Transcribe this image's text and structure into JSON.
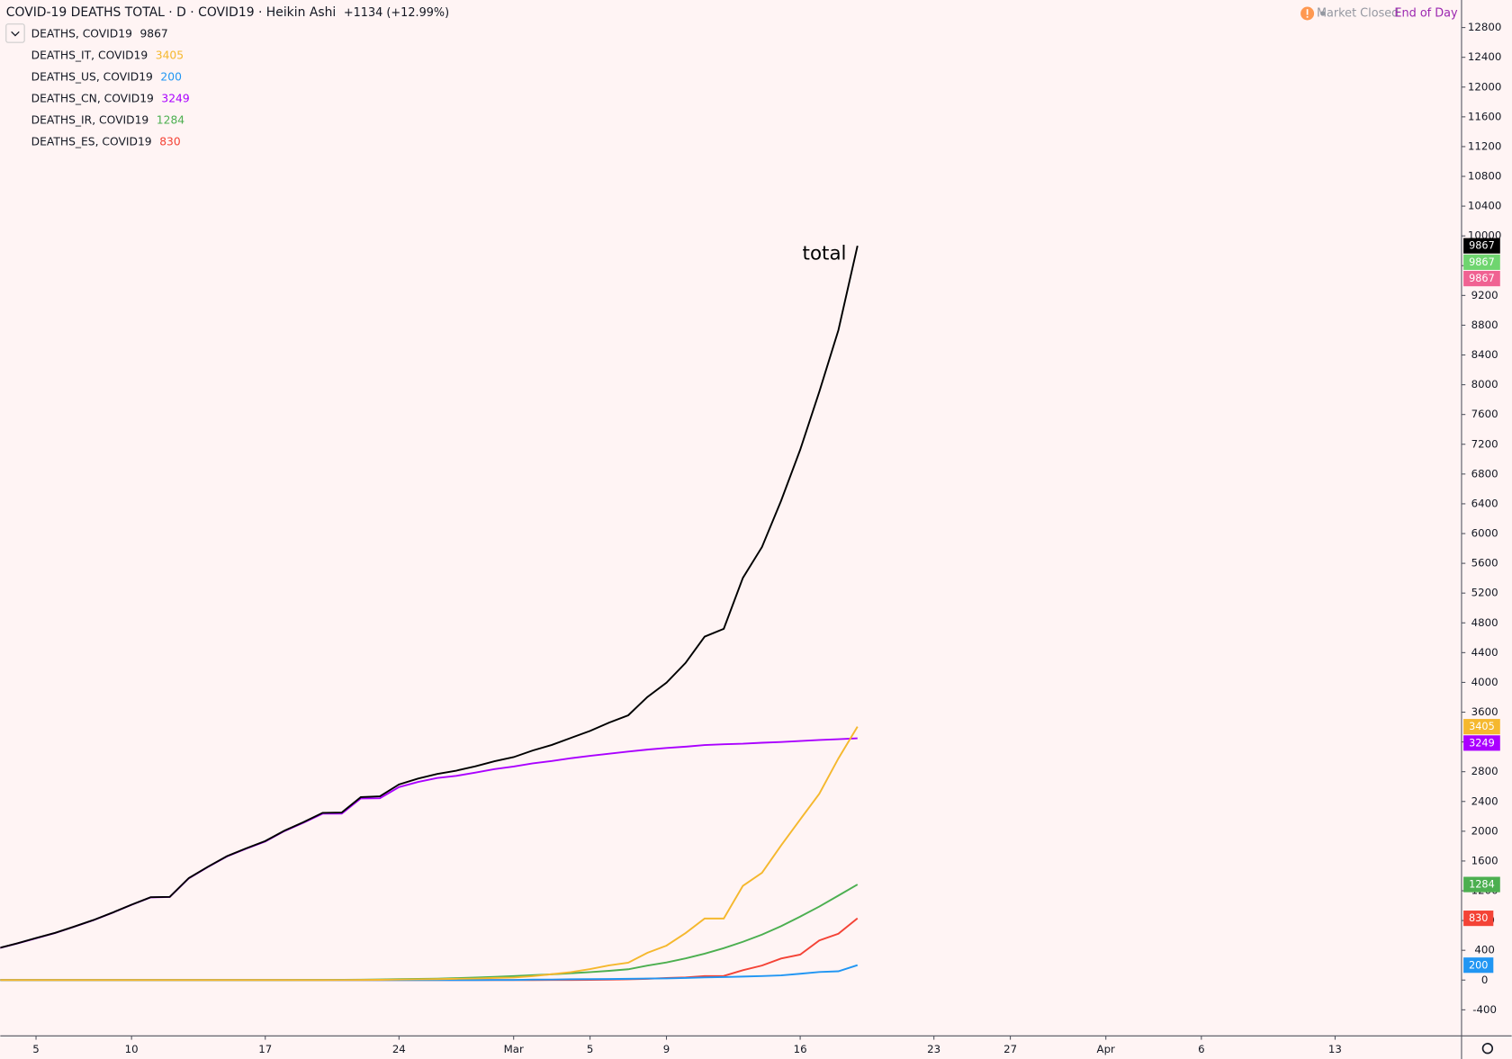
{
  "chart_data": {
    "type": "line",
    "title": "COVID-19 DEATHS TOTAL · D · COVID19 · Heikin Ashi",
    "change": "+1134 (+12.99%)",
    "status": "Market Closed",
    "session": "End of Day",
    "annotation": "total",
    "categories": [
      null,
      null,
      "5",
      null,
      null,
      null,
      null,
      "10",
      null,
      null,
      null,
      null,
      null,
      null,
      "17",
      null,
      null,
      null,
      null,
      null,
      null,
      "24",
      null,
      null,
      null,
      null,
      null,
      "Mar",
      null,
      null,
      null,
      "5",
      null,
      null,
      null,
      "9",
      null,
      null,
      null,
      null,
      null,
      null,
      "16",
      null,
      null,
      null,
      null,
      null,
      null,
      "23",
      null,
      null,
      null,
      "27",
      null,
      null,
      null,
      null,
      "Apr",
      null,
      null,
      null,
      null,
      "6",
      null,
      null,
      null,
      null,
      null,
      null,
      "13",
      null,
      null,
      null,
      null,
      null,
      null
    ],
    "series": [
      {
        "name": "DEATHS, COVID19",
        "color": "#000000",
        "values": [
          426,
          492,
          564,
          634,
          719,
          806,
          906,
          1013,
          1113,
          1118,
          1371,
          1523,
          1666,
          1770,
          1868,
          2007,
          2122,
          2247,
          2251,
          2458,
          2469,
          2629,
          2708,
          2770,
          2814,
          2872,
          2941,
          2996,
          3085,
          3160,
          3254,
          3348,
          3460,
          3558,
          3803,
          3996,
          4262,
          4615,
          4720,
          5404,
          5819,
          6440,
          7126,
          7905,
          8733,
          9867,
          null,
          null,
          null,
          null,
          null,
          null,
          null,
          null,
          null,
          null,
          null,
          null,
          null,
          null,
          null,
          null,
          null,
          null,
          null,
          null,
          null,
          null,
          null,
          null,
          null,
          null,
          null,
          null,
          null,
          null,
          null
        ]
      },
      {
        "name": "DEATHS_IT, COVID19",
        "color": "#f5b82e",
        "values": [
          0,
          0,
          0,
          0,
          0,
          0,
          0,
          0,
          0,
          0,
          0,
          0,
          0,
          0,
          0,
          0,
          0,
          0,
          1,
          2,
          3,
          7,
          10,
          12,
          17,
          21,
          29,
          34,
          52,
          79,
          107,
          148,
          197,
          233,
          366,
          463,
          631,
          827,
          827,
          1266,
          1441,
          1809,
          2158,
          2503,
          2978,
          3405,
          null,
          null,
          null,
          null,
          null,
          null,
          null,
          null,
          null,
          null,
          null,
          null,
          null,
          null,
          null,
          null,
          null,
          null,
          null,
          null,
          null,
          null,
          null,
          null,
          null,
          null,
          null,
          null,
          null,
          null,
          null
        ]
      },
      {
        "name": "DEATHS_US, COVID19",
        "color": "#2196f3",
        "values": [
          0,
          0,
          0,
          0,
          0,
          0,
          0,
          0,
          0,
          0,
          0,
          0,
          0,
          0,
          0,
          0,
          0,
          0,
          0,
          0,
          0,
          0,
          0,
          0,
          0,
          0,
          1,
          1,
          6,
          7,
          11,
          12,
          14,
          17,
          21,
          22,
          28,
          36,
          40,
          47,
          54,
          63,
          85,
          108,
          118,
          200,
          null,
          null,
          null,
          null,
          null,
          null,
          null,
          null,
          null,
          null,
          null,
          null,
          null,
          null,
          null,
          null,
          null,
          null,
          null,
          null,
          null,
          null,
          null,
          null,
          null,
          null,
          null,
          null,
          null,
          null,
          null
        ]
      },
      {
        "name": "DEATHS_CN, COVID19",
        "color": "#aa00ff",
        "values": [
          425,
          490,
          562,
          632,
          717,
          804,
          904,
          1011,
          1111,
          1116,
          1368,
          1520,
          1662,
          1765,
          1863,
          2002,
          2114,
          2236,
          2236,
          2441,
          2443,
          2593,
          2663,
          2715,
          2744,
          2788,
          2835,
          2870,
          2912,
          2943,
          2981,
          3013,
          3042,
          3070,
          3097,
          3119,
          3136,
          3158,
          3169,
          3176,
          3189,
          3199,
          3213,
          3226,
          3237,
          3249,
          null,
          null,
          null,
          null,
          null,
          null,
          null,
          null,
          null,
          null,
          null,
          null,
          null,
          null,
          null,
          null,
          null,
          null,
          null,
          null,
          null,
          null,
          null,
          null,
          null,
          null,
          null,
          null,
          null,
          null,
          null
        ]
      },
      {
        "name": "DEATHS_IR, COVID19",
        "color": "#4caf50",
        "values": [
          0,
          0,
          0,
          0,
          0,
          0,
          0,
          0,
          0,
          0,
          0,
          0,
          0,
          0,
          0,
          0,
          2,
          2,
          4,
          5,
          8,
          12,
          16,
          19,
          26,
          34,
          43,
          54,
          66,
          77,
          92,
          107,
          124,
          145,
          194,
          237,
          291,
          354,
          429,
          514,
          611,
          724,
          853,
          988,
          1135,
          1284,
          null,
          null,
          null,
          null,
          null,
          null,
          null,
          null,
          null,
          null,
          null,
          null,
          null,
          null,
          null,
          null,
          null,
          null,
          null,
          null,
          null,
          null,
          null,
          null,
          null,
          null,
          null,
          null,
          null,
          null,
          null
        ]
      },
      {
        "name": "DEATHS_ES, COVID19",
        "color": "#f44336",
        "values": [
          0,
          0,
          0,
          0,
          0,
          0,
          0,
          0,
          0,
          0,
          0,
          0,
          0,
          0,
          0,
          0,
          0,
          0,
          0,
          0,
          0,
          0,
          0,
          0,
          0,
          0,
          0,
          0,
          0,
          1,
          2,
          3,
          5,
          10,
          17,
          28,
          35,
          54,
          55,
          133,
          195,
          289,
          342,
          533,
          623,
          830,
          null,
          null,
          null,
          null,
          null,
          null,
          null,
          null,
          null,
          null,
          null,
          null,
          null,
          null,
          null,
          null,
          null,
          null,
          null,
          null,
          null,
          null,
          null,
          null,
          null,
          null,
          null,
          null,
          null,
          null,
          null
        ]
      }
    ],
    "ylim": [
      -750,
      13170
    ],
    "yticks": [
      -400,
      0,
      400,
      800,
      1200,
      1600,
      2000,
      2400,
      2800,
      3200,
      3600,
      4000,
      4400,
      4800,
      5200,
      5600,
      6000,
      6400,
      6800,
      7200,
      7600,
      8000,
      8400,
      8800,
      9200,
      9600,
      10000,
      10400,
      10800,
      11200,
      11600,
      12000,
      12400,
      12800
    ],
    "grid": false
  }
}
